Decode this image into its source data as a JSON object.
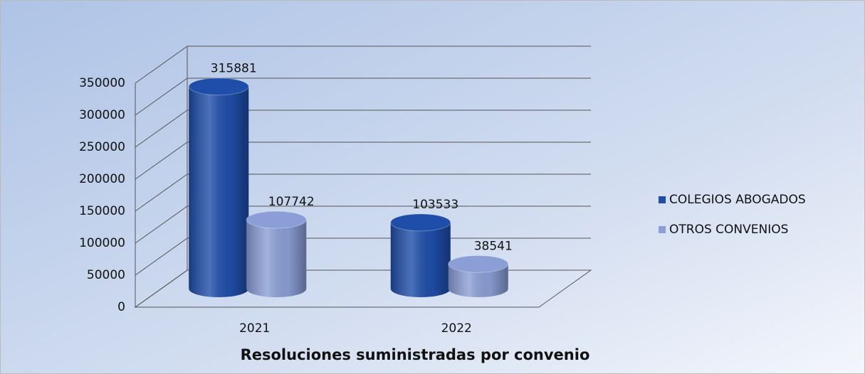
{
  "chart_data": {
    "type": "bar3d",
    "title": "Resoluciones suministradas por convenio",
    "categories": [
      "2021",
      "2022"
    ],
    "series": [
      {
        "name": "COLEGIOS ABOGADOS",
        "color": "#1f4eaa",
        "values": [
          315881,
          103533
        ]
      },
      {
        "name": "OTROS CONVENIOS",
        "color": "#8b9fd6",
        "values": [
          107742,
          38541
        ]
      }
    ],
    "ylim": [
      0,
      350000
    ],
    "yticks": [
      0,
      50000,
      100000,
      150000,
      200000,
      250000,
      300000,
      350000
    ],
    "grid": true,
    "legend": "right"
  }
}
